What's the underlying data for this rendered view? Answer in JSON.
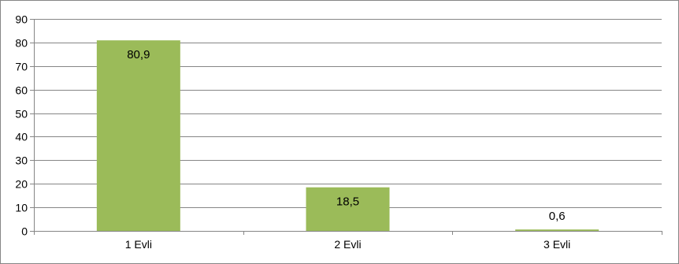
{
  "chart_data": {
    "type": "bar",
    "categories": [
      "1 Evli",
      "2 Evli",
      "3 Evli"
    ],
    "values": [
      80.9,
      18.5,
      0.6
    ],
    "data_labels": [
      "80,9",
      "18,5",
      "0,6"
    ],
    "y_ticks": [
      "0",
      "10",
      "20",
      "30",
      "40",
      "50",
      "60",
      "70",
      "80",
      "90"
    ],
    "ylim": [
      0,
      90
    ],
    "grid": true,
    "legend": "none",
    "colors": {
      "bar": "#9bbb59",
      "grid": "#868686",
      "axis": "#868686",
      "frame": "#868686"
    }
  }
}
